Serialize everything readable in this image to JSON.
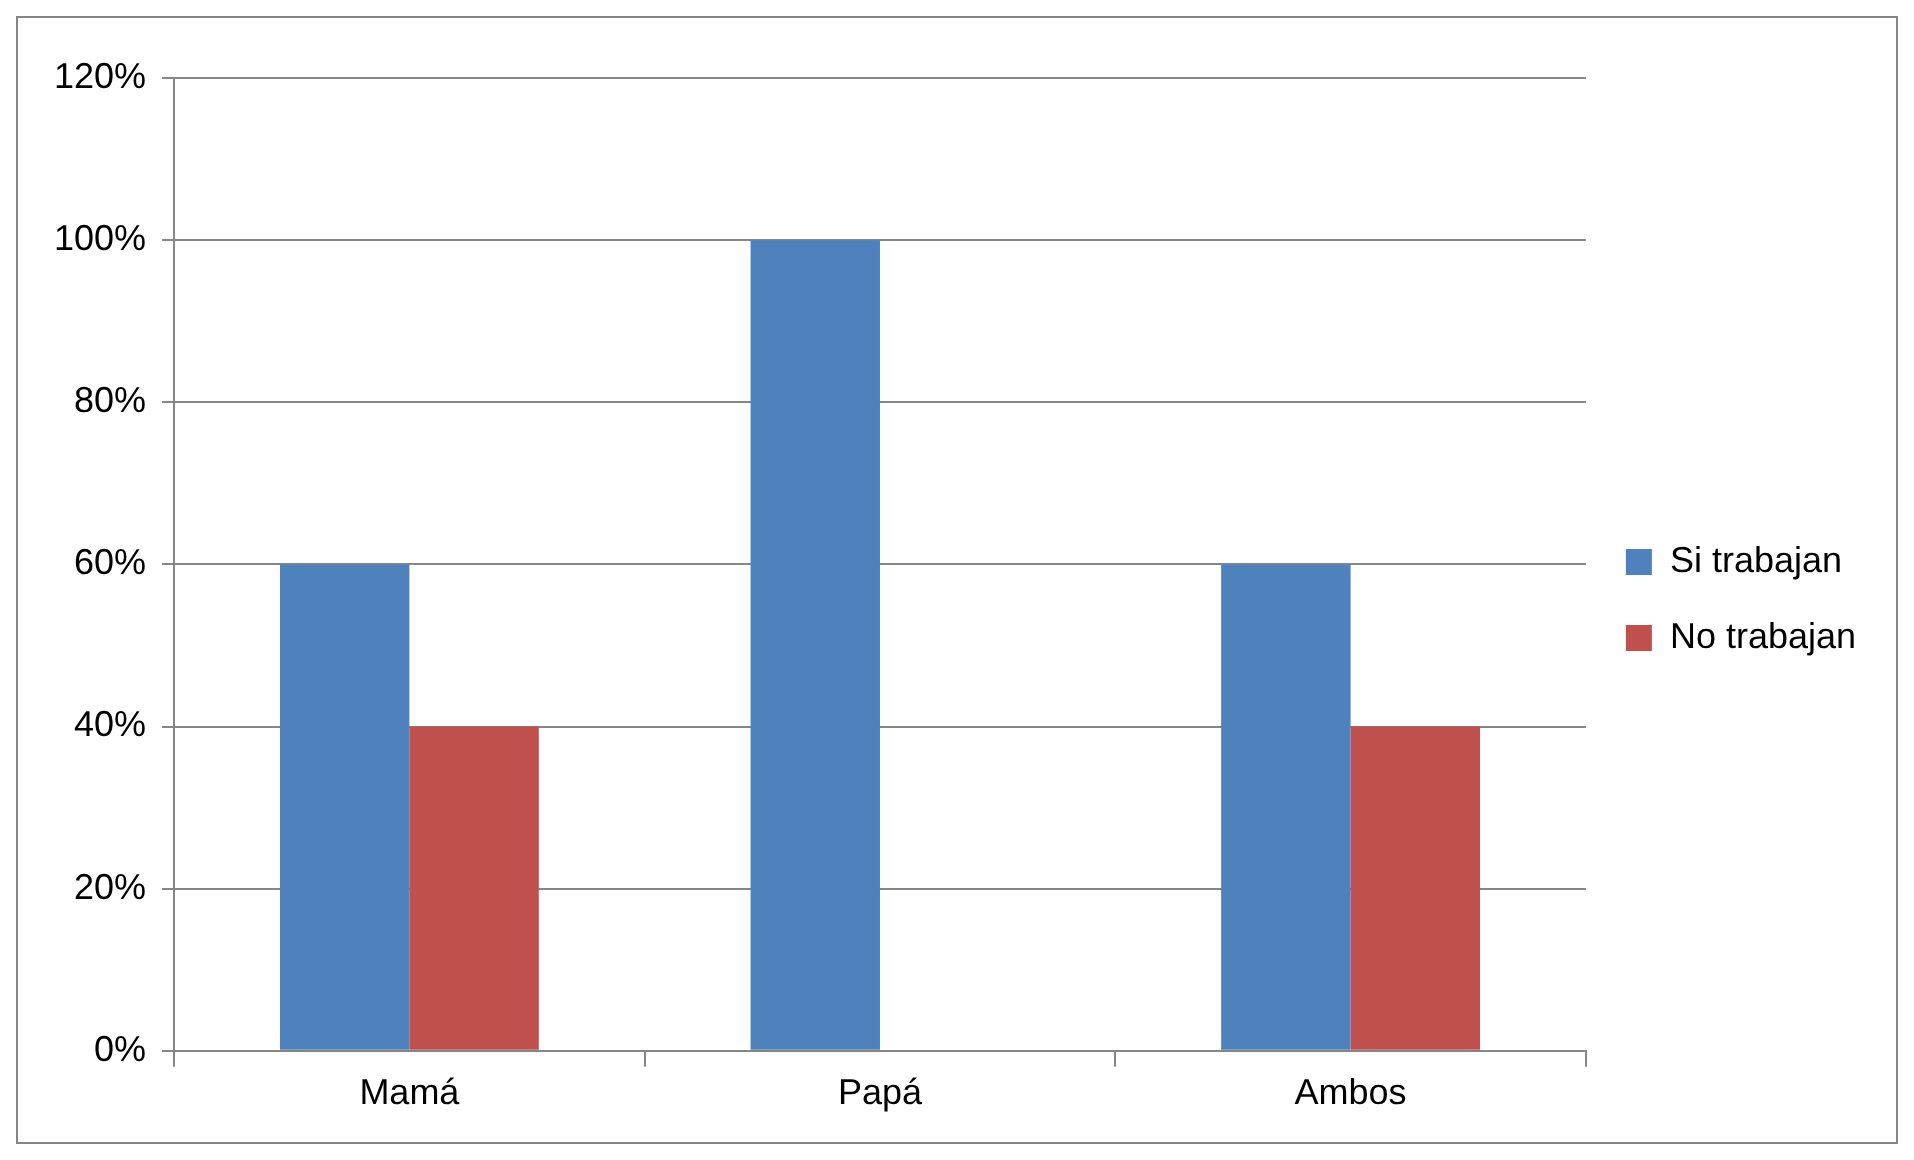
{
  "chart_data": {
    "type": "bar",
    "categories": [
      "Mamá",
      "Papá",
      "Ambos"
    ],
    "series": [
      {
        "name": "Si trabajan",
        "color": "#4f81bd",
        "values": [
          60,
          100,
          60
        ]
      },
      {
        "name": "No trabajan",
        "color": "#c0504d",
        "values": [
          40,
          0,
          40
        ]
      }
    ],
    "ylim": [
      0,
      120
    ],
    "yticks": [
      {
        "value": 0,
        "label": "0%"
      },
      {
        "value": 20,
        "label": "20%"
      },
      {
        "value": 40,
        "label": "40%"
      },
      {
        "value": 60,
        "label": "60%"
      },
      {
        "value": 80,
        "label": "80%"
      },
      {
        "value": 100,
        "label": "100%"
      },
      {
        "value": 120,
        "label": "120%"
      }
    ],
    "grid": "y",
    "legend": "right"
  }
}
